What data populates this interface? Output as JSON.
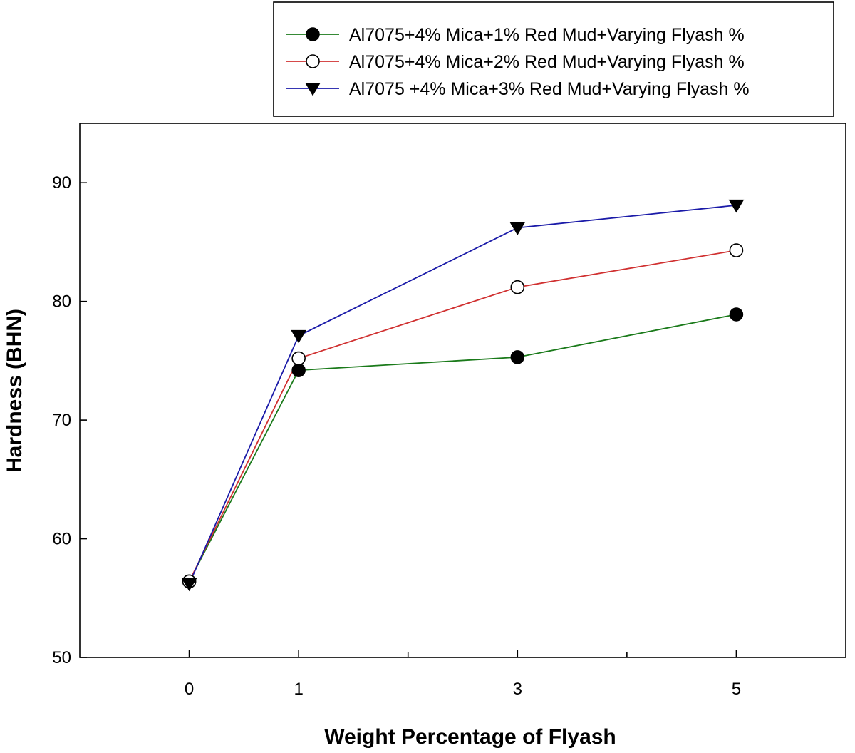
{
  "chart_data": {
    "type": "line",
    "xlabel": "Weight Percentage of Flyash",
    "ylabel": "Hardness (BHN)",
    "x": [
      0,
      1,
      3,
      5
    ],
    "x_ticks": [
      0,
      1,
      3,
      5
    ],
    "x_minor_ticks": [
      2,
      4
    ],
    "xlim": [
      -1,
      6
    ],
    "y_ticks": [
      50,
      60,
      70,
      80,
      90
    ],
    "ylim": [
      50,
      95
    ],
    "grid": false,
    "legend_position": "top-right",
    "series": [
      {
        "name": "Al7075+4% Mica+1% Red Mud+Varying Flyash %",
        "values": [
          56.4,
          74.2,
          75.3,
          78.9
        ],
        "color": "#1a7a1a",
        "marker": "filled-circle"
      },
      {
        "name": "Al7075+4% Mica+2% Red Mud+Varying Flyash %",
        "values": [
          56.4,
          75.2,
          81.2,
          84.3
        ],
        "color": "#d03030",
        "marker": "open-circle"
      },
      {
        "name": "Al7075 +4% Mica+3% Red Mud+Varying Flyash %",
        "values": [
          56.2,
          77.1,
          86.2,
          88.1
        ],
        "color": "#1a1aa8",
        "marker": "filled-triangle-down"
      }
    ]
  }
}
